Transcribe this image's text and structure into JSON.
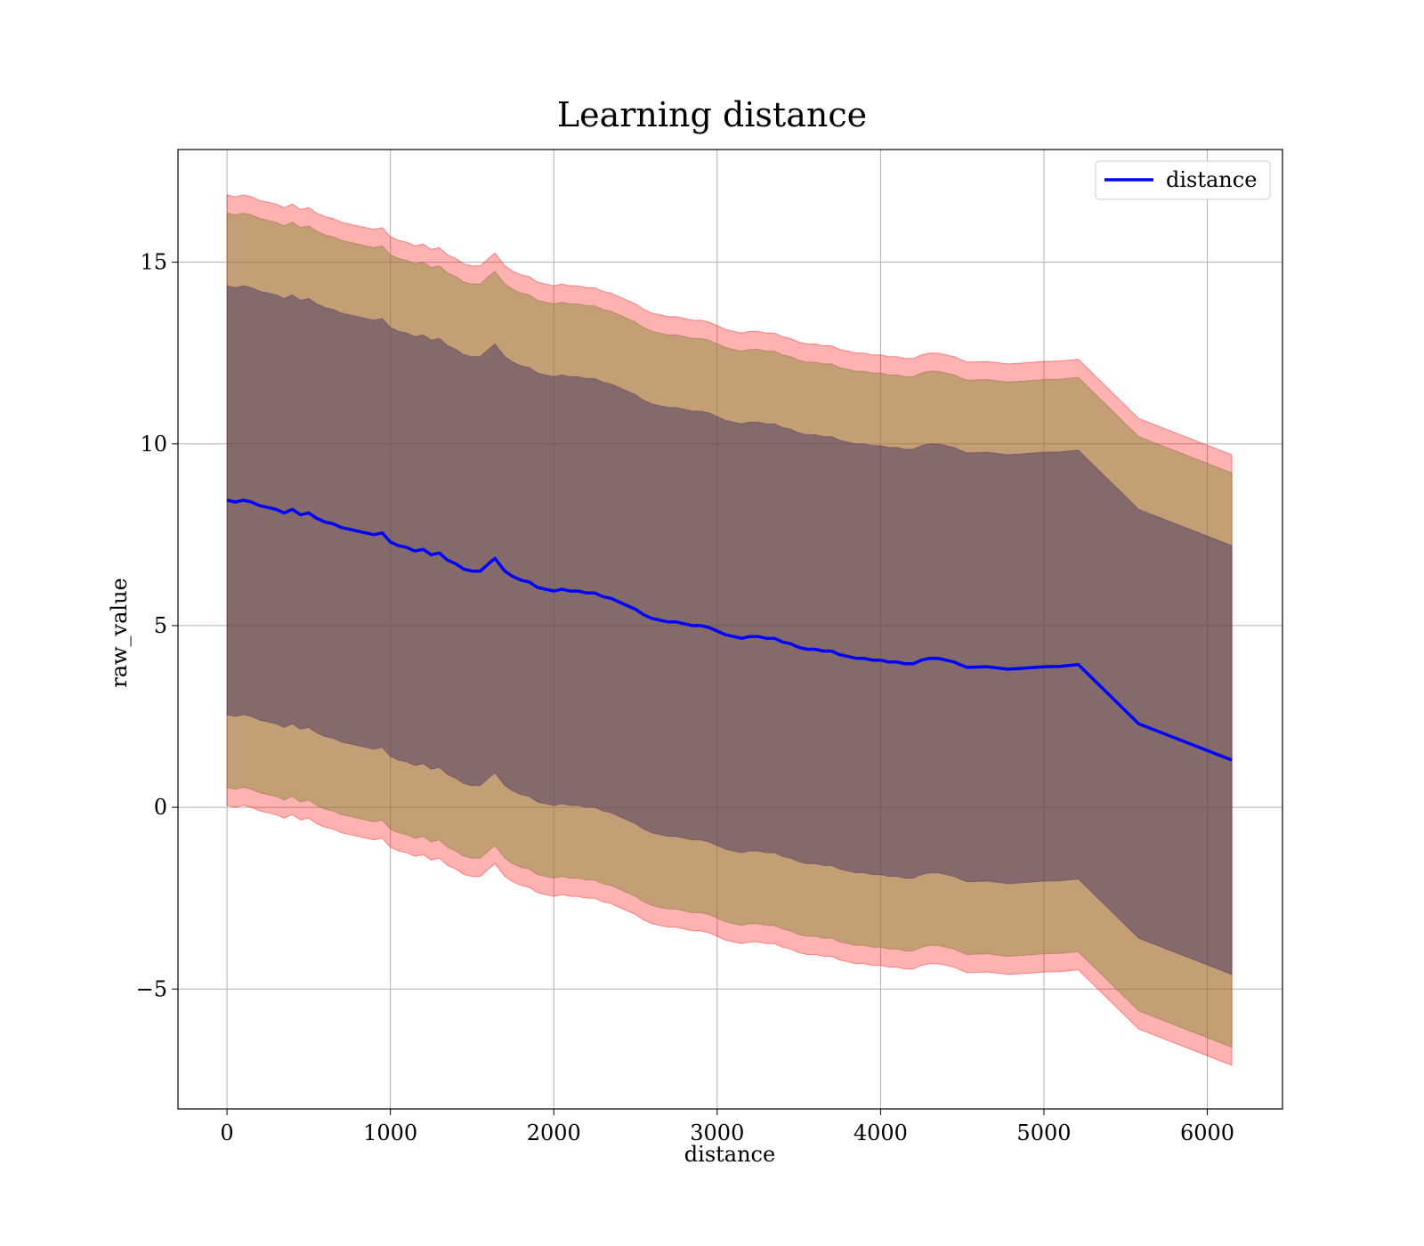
{
  "chart_data": {
    "type": "line",
    "title": "Learning distance",
    "xlabel": "distance",
    "ylabel": "raw_value",
    "xlim": [
      -300,
      6460
    ],
    "ylim": [
      -8.3,
      18.1
    ],
    "xticks": [
      0,
      1000,
      2000,
      3000,
      4000,
      5000,
      6000
    ],
    "xtick_labels": [
      "0",
      "1000",
      "2000",
      "3000",
      "4000",
      "5000",
      "6000"
    ],
    "yticks": [
      -5,
      0,
      5,
      10,
      15
    ],
    "ytick_labels": [
      "−5",
      "0",
      "5",
      "10",
      "15"
    ],
    "grid": true,
    "legend": {
      "position": "top-right",
      "entries": [
        "distance"
      ]
    },
    "colors": {
      "line": "#0000ff",
      "band": "#ff0000",
      "inner_band": "#3a2a60",
      "mid_band": "#8a8a38",
      "grid": "#b0b0b0"
    },
    "series": [
      {
        "name": "distance",
        "x": [
          0,
          50,
          100,
          150,
          200,
          250,
          300,
          350,
          400,
          450,
          500,
          550,
          600,
          650,
          700,
          750,
          800,
          850,
          900,
          950,
          1000,
          1050,
          1100,
          1150,
          1200,
          1250,
          1300,
          1350,
          1400,
          1450,
          1500,
          1550,
          1600,
          1640,
          1700,
          1750,
          1800,
          1850,
          1900,
          1950,
          2000,
          2050,
          2100,
          2150,
          2200,
          2250,
          2300,
          2350,
          2400,
          2450,
          2500,
          2550,
          2600,
          2650,
          2700,
          2750,
          2800,
          2850,
          2900,
          2950,
          3000,
          3050,
          3100,
          3150,
          3200,
          3250,
          3300,
          3350,
          3400,
          3450,
          3500,
          3550,
          3600,
          3650,
          3700,
          3750,
          3800,
          3850,
          3900,
          3950,
          4000,
          4050,
          4100,
          4150,
          4200,
          4250,
          4300,
          4350,
          4400,
          4450,
          4500,
          4530,
          4650,
          4780,
          4850,
          5000,
          5100,
          5210,
          5580,
          6150
        ],
        "y": [
          8.45,
          8.4,
          8.45,
          8.4,
          8.3,
          8.25,
          8.2,
          8.1,
          8.2,
          8.05,
          8.1,
          7.95,
          7.85,
          7.8,
          7.7,
          7.65,
          7.6,
          7.55,
          7.5,
          7.55,
          7.3,
          7.2,
          7.15,
          7.05,
          7.1,
          6.95,
          7.0,
          6.8,
          6.7,
          6.55,
          6.5,
          6.5,
          6.7,
          6.85,
          6.5,
          6.35,
          6.25,
          6.2,
          6.05,
          6.0,
          5.95,
          6.0,
          5.95,
          5.95,
          5.9,
          5.9,
          5.8,
          5.75,
          5.65,
          5.55,
          5.45,
          5.3,
          5.2,
          5.15,
          5.1,
          5.1,
          5.05,
          5.0,
          5.0,
          4.95,
          4.85,
          4.75,
          4.7,
          4.65,
          4.7,
          4.7,
          4.65,
          4.65,
          4.55,
          4.5,
          4.4,
          4.35,
          4.35,
          4.3,
          4.3,
          4.2,
          4.15,
          4.1,
          4.1,
          4.05,
          4.05,
          4.0,
          4.0,
          3.95,
          3.95,
          4.05,
          4.1,
          4.1,
          4.05,
          4.0,
          3.9,
          3.85,
          3.87,
          3.8,
          3.82,
          3.87,
          3.88,
          3.93,
          2.3,
          1.3
        ],
        "band_outer_upper_offset": 8.4,
        "band_mid_upper_offset": 7.9,
        "band_inner_upper_offset": 5.9
      }
    ]
  }
}
